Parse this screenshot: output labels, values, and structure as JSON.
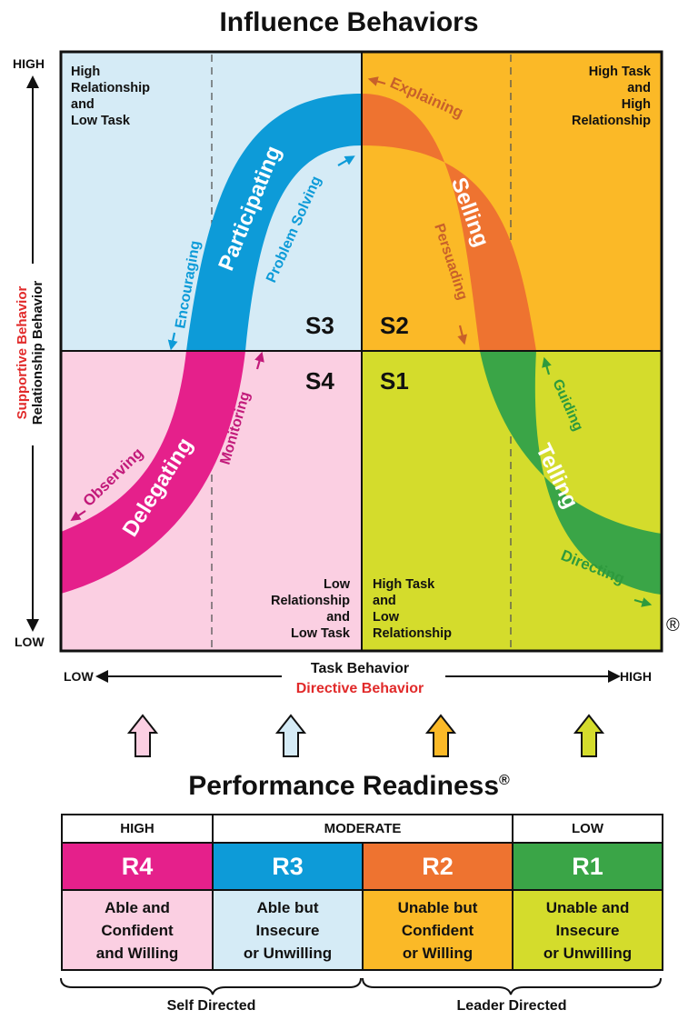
{
  "title": "Influence Behaviors",
  "quadrants": {
    "top_left_label": "High\nRelationship\nand\nLow Task",
    "top_right_label": "High Task\nand\nHigh\nRelationship",
    "bottom_left_label": "Low\nRelationship\nand\nLow Task",
    "bottom_right_label": "High Task\nand\nLow\nRelationship"
  },
  "styles": {
    "S1": "S1",
    "S2": "S2",
    "S3": "S3",
    "S4": "S4",
    "telling": "Telling",
    "selling": "Selling",
    "participating": "Participating",
    "delegating": "Delegating"
  },
  "behaviors": {
    "explaining": "Explaining",
    "persuading": "Persuading",
    "problem_solving": "Problem Solving",
    "encouraging": "Encouraging",
    "monitoring": "Monitoring",
    "observing": "Observing",
    "guiding": "Guiding",
    "directing": "Directing"
  },
  "y_axis": {
    "high": "HIGH",
    "low": "LOW",
    "label_black": "Relationship Behavior",
    "label_red": "Supportive Behavior"
  },
  "x_axis": {
    "low": "LOW",
    "high": "HIGH",
    "label_black": "Task Behavior",
    "label_red": "Directive Behavior"
  },
  "registered_mark": "®",
  "readiness": {
    "title": "Performance Readiness",
    "title_mark": "®",
    "levels": {
      "high": "HIGH",
      "moderate": "MODERATE",
      "low": "LOW"
    },
    "codes": {
      "r4": "R4",
      "r3": "R3",
      "r2": "R2",
      "r1": "R1"
    },
    "desc": {
      "r4": "Able and\nConfident\nand Willing",
      "r3": "Able but\nInsecure\nor Unwilling",
      "r2": "Unable but\nConfident\nor Willing",
      "r1": "Unable and\nInsecure\nor Unwilling"
    },
    "self_directed": "Self Directed",
    "leader_directed": "Leader Directed"
  },
  "colors": {
    "tl_bg": "#d5ebf6",
    "tr_bg": "#fbb927",
    "bl_bg": "#fbcfe2",
    "br_bg": "#d4dc2c",
    "participating": "#0d9bd8",
    "selling": "#ee7330",
    "delegating": "#e5208b",
    "telling": "#3aa547",
    "red_text": "#e12a2a"
  }
}
